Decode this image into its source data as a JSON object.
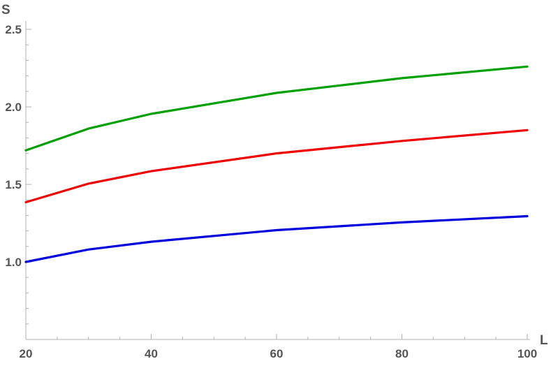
{
  "chart_data": {
    "type": "line",
    "title": "",
    "xlabel": "L",
    "ylabel": "S",
    "xlim": [
      20,
      100
    ],
    "ylim": [
      0.5,
      2.5
    ],
    "grid": false,
    "legend": "none",
    "x_ticks": [
      20,
      40,
      60,
      80,
      100
    ],
    "x_tick_labels": [
      "20",
      "40",
      "60",
      "80",
      "100"
    ],
    "x_minor_ticks": [
      25,
      30,
      35,
      45,
      50,
      55,
      65,
      70,
      75,
      85,
      90,
      95
    ],
    "y_ticks": [
      1.0,
      1.5,
      2.0,
      2.5
    ],
    "y_tick_labels": [
      "1.0",
      "1.5",
      "2.0",
      "2.5"
    ],
    "y_minor_ticks": [
      0.6,
      0.7,
      0.8,
      0.9,
      1.1,
      1.2,
      1.3,
      1.4,
      1.6,
      1.7,
      1.8,
      1.9,
      2.1,
      2.2,
      2.3,
      2.4
    ],
    "x": [
      20,
      30,
      40,
      60,
      80,
      100
    ],
    "series": [
      {
        "color": "#0000dd",
        "values": [
          1.0,
          1.08,
          1.13,
          1.205,
          1.255,
          1.295
        ]
      },
      {
        "color": "#ee0000",
        "values": [
          1.385,
          1.505,
          1.585,
          1.7,
          1.78,
          1.85
        ]
      },
      {
        "color": "#00a000",
        "values": [
          1.72,
          1.86,
          1.955,
          2.09,
          2.185,
          2.26
        ]
      }
    ]
  }
}
